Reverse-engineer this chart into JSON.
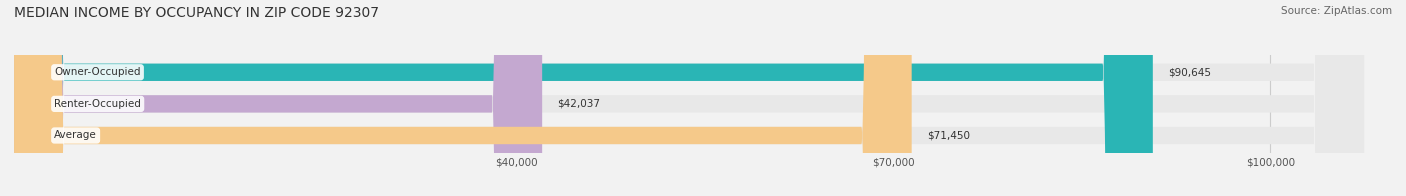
{
  "title": "MEDIAN INCOME BY OCCUPANCY IN ZIP CODE 92307",
  "source": "Source: ZipAtlas.com",
  "categories": [
    "Owner-Occupied",
    "Renter-Occupied",
    "Average"
  ],
  "values": [
    90645,
    42037,
    71450
  ],
  "bar_colors": [
    "#2ab5b5",
    "#c4a8d0",
    "#f5c98a"
  ],
  "label_texts": [
    "$90,645",
    "$42,037",
    "$71,450"
  ],
  "x_tick_labels": [
    "$40,000",
    "$70,000",
    "$100,000"
  ],
  "x_tick_values": [
    40000,
    70000,
    100000
  ],
  "x_min": 0,
  "x_max": 108000,
  "background_color": "#f2f2f2",
  "bar_background_color": "#e8e8e8",
  "title_fontsize": 10,
  "source_fontsize": 7.5,
  "bar_label_fontsize": 7.5,
  "category_label_fontsize": 7.5,
  "tick_fontsize": 7.5,
  "bar_height": 0.55,
  "title_color": "#333333",
  "source_color": "#666666",
  "category_label_color": "#333333",
  "bar_label_color": "#333333"
}
